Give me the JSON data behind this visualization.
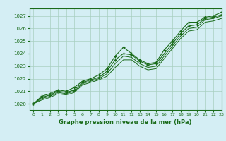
{
  "xlabel": "Graphe pression niveau de la mer (hPa)",
  "ylim": [
    1019.5,
    1027.6
  ],
  "xlim": [
    -0.5,
    23
  ],
  "yticks": [
    1020,
    1021,
    1022,
    1023,
    1024,
    1025,
    1026,
    1027
  ],
  "xticks": [
    0,
    1,
    2,
    3,
    4,
    5,
    6,
    7,
    8,
    9,
    10,
    11,
    12,
    13,
    14,
    15,
    16,
    17,
    18,
    19,
    20,
    21,
    22,
    23
  ],
  "bg_color": "#d4eef4",
  "plot_bg_color": "#d4eef4",
  "grid_color": "#a8cfc0",
  "line_color1": "#1a6b1a",
  "line_color2": "#1a6b1a",
  "series": {
    "line1": [
      1020.0,
      1020.6,
      1020.8,
      1021.1,
      1021.0,
      1021.3,
      1021.8,
      1022.0,
      1022.3,
      1022.8,
      1023.8,
      1024.5,
      1024.0,
      1023.5,
      1023.2,
      1023.3,
      1024.3,
      1025.0,
      1025.8,
      1026.5,
      1026.5,
      1026.9,
      1027.0,
      1027.3
    ],
    "line2": [
      1020.0,
      1020.5,
      1020.7,
      1021.0,
      1020.9,
      1021.1,
      1021.7,
      1021.9,
      1022.1,
      1022.6,
      1023.5,
      1024.0,
      1023.9,
      1023.4,
      1023.1,
      1023.2,
      1024.0,
      1024.8,
      1025.6,
      1026.2,
      1026.3,
      1026.8,
      1026.9,
      1027.1
    ],
    "line3": [
      1020.0,
      1020.4,
      1020.6,
      1020.9,
      1020.8,
      1021.0,
      1021.6,
      1021.8,
      1022.0,
      1022.4,
      1023.2,
      1023.8,
      1023.7,
      1023.2,
      1022.9,
      1023.0,
      1023.8,
      1024.6,
      1025.4,
      1026.0,
      1026.1,
      1026.7,
      1026.8,
      1027.0
    ],
    "line4": [
      1020.0,
      1020.3,
      1020.5,
      1020.8,
      1020.7,
      1020.9,
      1021.5,
      1021.7,
      1021.9,
      1022.2,
      1022.9,
      1023.5,
      1023.5,
      1023.0,
      1022.7,
      1022.8,
      1023.6,
      1024.4,
      1025.2,
      1025.8,
      1025.9,
      1026.5,
      1026.6,
      1026.8
    ]
  }
}
